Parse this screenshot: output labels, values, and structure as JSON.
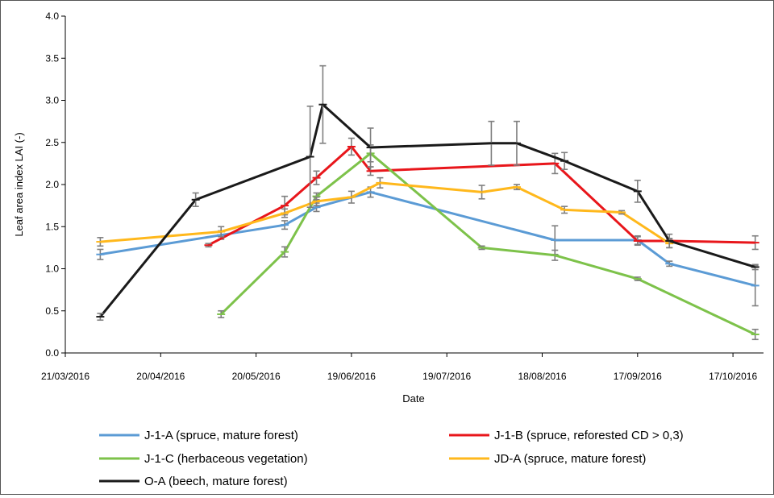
{
  "chart_data": {
    "type": "line",
    "title": "",
    "xlabel": "Date",
    "ylabel": "Leaf area index LAI (-)",
    "ylim": [
      0,
      4
    ],
    "x_ticks": [
      "21/03/2016",
      "20/04/2016",
      "20/05/2016",
      "19/06/2016",
      "19/07/2016",
      "18/08/2016",
      "17/09/2016",
      "17/10/2016"
    ],
    "y_ticks": [
      "0.0",
      "0.5",
      "1.0",
      "1.5",
      "2.0",
      "2.5",
      "3.0",
      "3.5",
      "4.0"
    ],
    "grid": false,
    "legend_position": "bottom",
    "error_bar_color": "#7f7f7f",
    "series": [
      {
        "name": "J-1-A (spruce, mature forest)",
        "color": "#5b9bd5",
        "points": [
          {
            "date": "2016-04-01",
            "y": 1.17,
            "err": 0.06
          },
          {
            "date": "2016-05-09",
            "y": 1.4,
            "err": 0.05
          },
          {
            "date": "2016-05-29",
            "y": 1.52,
            "err": 0.05
          },
          {
            "date": "2016-06-08",
            "y": 1.73,
            "err": 0.05
          },
          {
            "date": "2016-06-25",
            "y": 1.91,
            "err": 0.06
          },
          {
            "date": "2016-08-22",
            "y": 1.34,
            "err": 0.17
          },
          {
            "date": "2016-09-17",
            "y": 1.34,
            "err": 0.05
          },
          {
            "date": "2016-09-27",
            "y": 1.06,
            "err": 0.03
          },
          {
            "date": "2016-10-24",
            "y": 0.8,
            "err": 0.24
          }
        ]
      },
      {
        "name": "J-1-B (spruce, reforested CD > 0,3)",
        "color": "#e8161b",
        "points": [
          {
            "date": "2016-05-05",
            "y": 1.28,
            "err": 0.02
          },
          {
            "date": "2016-05-29",
            "y": 1.75,
            "err": 0.11
          },
          {
            "date": "2016-06-08",
            "y": 2.08,
            "err": 0.08
          },
          {
            "date": "2016-06-19",
            "y": 2.45,
            "err": 0.1
          },
          {
            "date": "2016-06-25",
            "y": 2.16,
            "err": 0.05
          },
          {
            "date": "2016-08-22",
            "y": 2.25,
            "err": 0.12
          },
          {
            "date": "2016-09-17",
            "y": 1.33,
            "err": 0.05
          },
          {
            "date": "2016-09-27",
            "y": 1.33,
            "err": 0.03
          },
          {
            "date": "2016-10-24",
            "y": 1.31,
            "err": 0.08
          }
        ]
      },
      {
        "name": "J-1-C (herbaceous vegetation)",
        "color": "#7dc24a",
        "points": [
          {
            "date": "2016-05-09",
            "y": 0.46,
            "err": 0.04
          },
          {
            "date": "2016-05-29",
            "y": 1.2,
            "err": 0.06
          },
          {
            "date": "2016-06-08",
            "y": 1.86,
            "err": 0.04
          },
          {
            "date": "2016-06-25",
            "y": 2.37,
            "err": 0.1
          },
          {
            "date": "2016-07-30",
            "y": 1.25,
            "err": 0.02
          },
          {
            "date": "2016-08-22",
            "y": 1.16,
            "err": 0.06
          },
          {
            "date": "2016-09-17",
            "y": 0.88,
            "err": 0.02
          },
          {
            "date": "2016-10-24",
            "y": 0.22,
            "err": 0.06
          }
        ]
      },
      {
        "name": "JD-A (spruce, mature forest)",
        "color": "#ffb81c",
        "points": [
          {
            "date": "2016-04-01",
            "y": 1.32,
            "err": 0.05
          },
          {
            "date": "2016-05-09",
            "y": 1.44,
            "err": 0.06
          },
          {
            "date": "2016-05-29",
            "y": 1.66,
            "err": 0.05
          },
          {
            "date": "2016-06-08",
            "y": 1.8,
            "err": 0.05
          },
          {
            "date": "2016-06-19",
            "y": 1.85,
            "err": 0.07
          },
          {
            "date": "2016-06-28",
            "y": 2.02,
            "err": 0.06
          },
          {
            "date": "2016-07-30",
            "y": 1.91,
            "err": 0.08
          },
          {
            "date": "2016-08-10",
            "y": 1.97,
            "err": 0.03
          },
          {
            "date": "2016-08-25",
            "y": 1.7,
            "err": 0.04
          },
          {
            "date": "2016-09-12",
            "y": 1.67,
            "err": 0.02
          },
          {
            "date": "2016-09-27",
            "y": 1.3,
            "err": 0.05
          }
        ]
      },
      {
        "name": "O-A (beech, mature forest)",
        "color": "#1a1a1a",
        "points": [
          {
            "date": "2016-04-01",
            "y": 0.43,
            "err": 0.04
          },
          {
            "date": "2016-05-01",
            "y": 1.82,
            "err": 0.08
          },
          {
            "date": "2016-06-06",
            "y": 2.33,
            "err": 0.6
          },
          {
            "date": "2016-06-10",
            "y": 2.95,
            "err": 0.46
          },
          {
            "date": "2016-06-25",
            "y": 2.44,
            "err": 0.23
          },
          {
            "date": "2016-08-02",
            "y": 2.49,
            "err": 0.26
          },
          {
            "date": "2016-08-10",
            "y": 2.49,
            "err": 0.26
          },
          {
            "date": "2016-08-25",
            "y": 2.28,
            "err": 0.1
          },
          {
            "date": "2016-09-17",
            "y": 1.92,
            "err": 0.13
          },
          {
            "date": "2016-09-27",
            "y": 1.33,
            "err": 0.08
          },
          {
            "date": "2016-10-24",
            "y": 1.02,
            "err": 0.03
          }
        ]
      }
    ]
  }
}
